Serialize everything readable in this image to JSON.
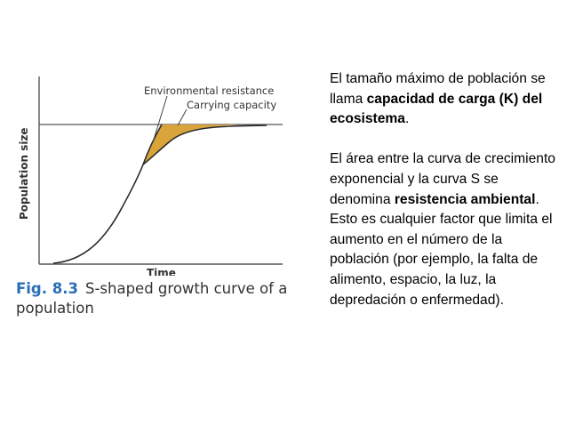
{
  "figure": {
    "labels": {
      "y_axis": "Population size",
      "x_axis": "Time",
      "environmental_resistance": "Environmental resistance",
      "carrying_capacity": "Carrying capacity"
    },
    "caption": {
      "number": "Fig. 8.3",
      "text": "S-shaped growth curve of a population"
    },
    "colors": {
      "curve": "#2b2b2b",
      "shaded_area": "#d9a43a",
      "caption_number": "#2a6fb5"
    }
  },
  "text_panel": {
    "para1": {
      "lead": "El tamaño máximo de población se llama ",
      "bold": "capacidad de carga (K) del ecosistema",
      "tail": "."
    },
    "para2": {
      "lead": "El área entre la curva de crecimiento exponencial y la curva S se denomina ",
      "bold": "resistencia ambiental",
      "tail": ". Esto es cualquier factor que limita el aumento en el número de la población (por ejemplo, la falta de alimento, espacio, la luz, la depredación o enfermedad)."
    }
  }
}
